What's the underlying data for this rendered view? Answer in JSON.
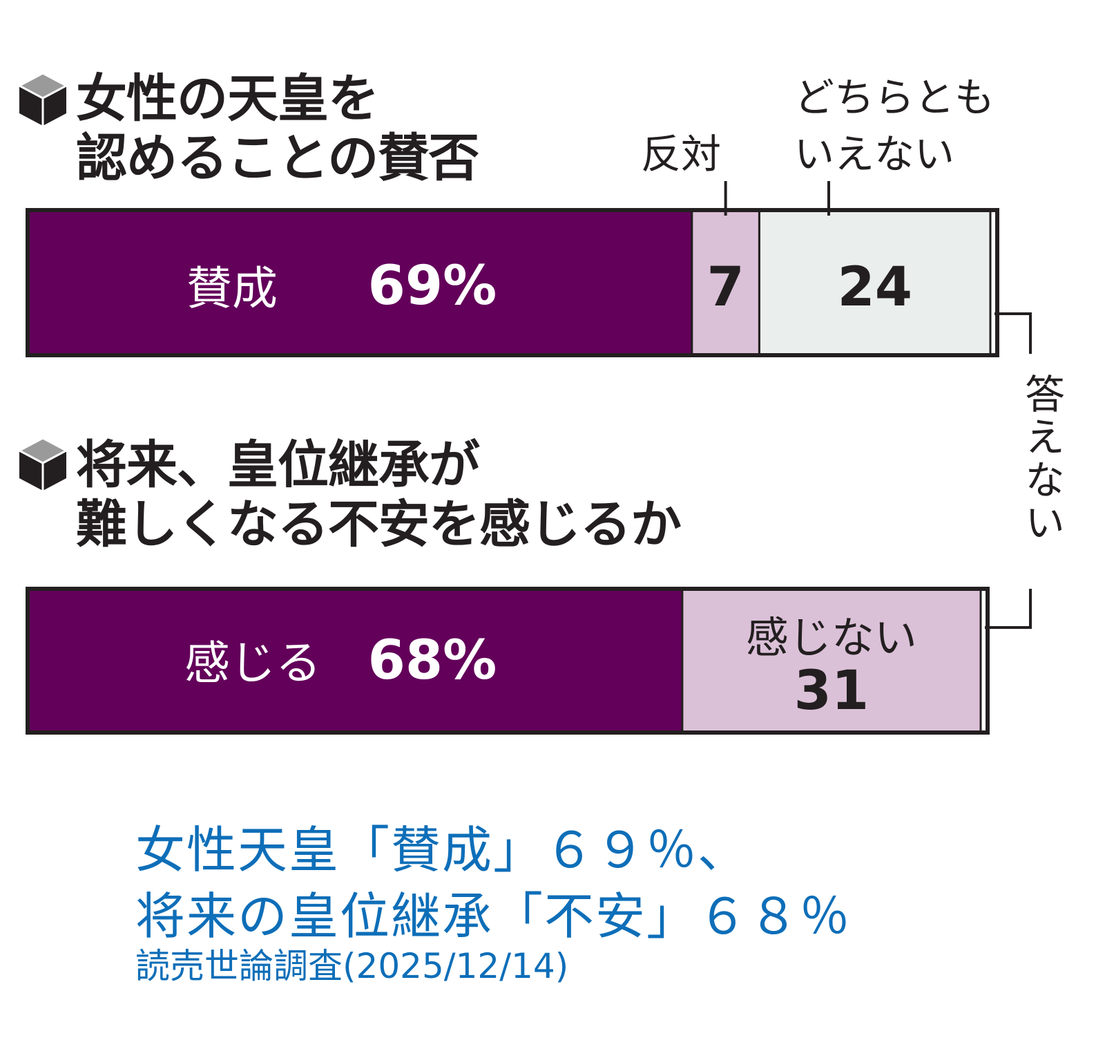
{
  "colors": {
    "favor": "#63005a",
    "oppose": "#dbc1d8",
    "neutral": "#eaeeed",
    "no_answer": "#ffffff",
    "outline": "#231f20",
    "headline": "#0e6eb8"
  },
  "icons": {
    "bullet": "cube-icon"
  },
  "chart_data": [
    {
      "type": "bar",
      "orientation": "horizontal-stacked",
      "title_lines": [
        "女性の天皇を",
        "認めることの賛否"
      ],
      "segments": [
        {
          "label": "賛成",
          "value": 69,
          "value_text": "69%"
        },
        {
          "label": "反対",
          "value": 7,
          "value_text": "7"
        },
        {
          "label": "どちらとも\nいえない",
          "value": 24,
          "value_text": "24"
        },
        {
          "label": "答えない",
          "value": 0,
          "value_text": ""
        }
      ]
    },
    {
      "type": "bar",
      "orientation": "horizontal-stacked",
      "title_lines": [
        "将来、皇位継承が",
        "難しくなる不安を感じるか"
      ],
      "segments": [
        {
          "label": "感じる",
          "value": 68,
          "value_text": "68%"
        },
        {
          "label": "感じない",
          "value": 31,
          "value_text": "31"
        },
        {
          "label": "答えない",
          "value": 1,
          "value_text": ""
        }
      ]
    }
  ],
  "labels": {
    "oppose": "反対",
    "neutral_line1": "どちらとも",
    "neutral_line2": "いえない",
    "no_answer": "答えない"
  },
  "headline": {
    "line1": "女性天皇「賛成」６９％、",
    "line2": "将来の皇位継承「不安」６８％"
  },
  "source": "読売世論調査(2025/12/14)"
}
